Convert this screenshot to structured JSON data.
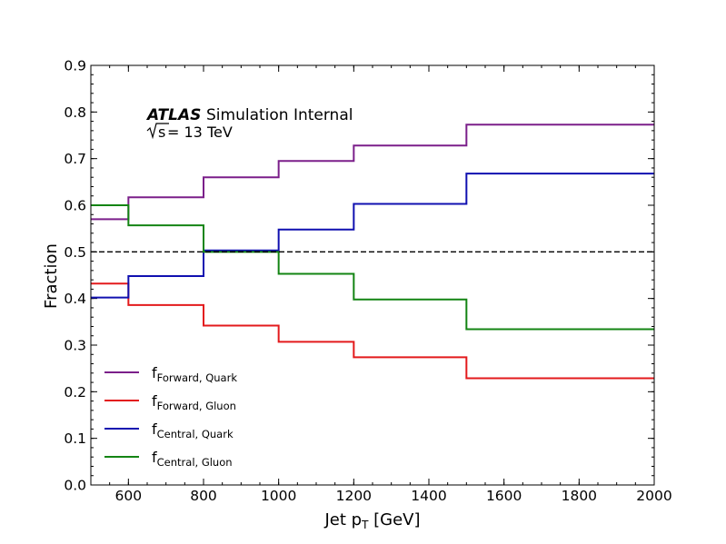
{
  "chart_data": {
    "type": "line",
    "drawstyle": "steps",
    "title": "",
    "xlabel_main": "Jet p",
    "xlabel_sub": "T",
    "xlabel_unit": " [GeV]",
    "ylabel": "Fraction",
    "xlim": [
      500,
      2000
    ],
    "ylim": [
      0,
      0.9
    ],
    "xticks": [
      600,
      800,
      1000,
      1200,
      1400,
      1600,
      1800,
      2000
    ],
    "yticks": [
      0.0,
      0.1,
      0.2,
      0.3,
      0.4,
      0.5,
      0.6,
      0.7,
      0.8,
      0.9
    ],
    "bin_edges": [
      500,
      600,
      800,
      1000,
      1200,
      1500,
      2000
    ],
    "reference_line": {
      "y": 0.5,
      "style": "dashed",
      "color": "#000000"
    },
    "annotation": {
      "experiment": "ATLAS",
      "status": "Simulation Internal",
      "energy_sqrt": "s",
      "energy_rest": " = 13 TeV"
    },
    "legend_placement": "lower-left",
    "series": [
      {
        "name": "Forward",
        "qualifier": "Quark",
        "color": "#7b1f8a",
        "values": [
          0.57,
          0.617,
          0.66,
          0.695,
          0.728,
          0.773
        ]
      },
      {
        "name": "Forward",
        "qualifier": "Gluon",
        "color": "#e31a1c",
        "values": [
          0.432,
          0.386,
          0.342,
          0.307,
          0.274,
          0.229
        ]
      },
      {
        "name": "Central",
        "qualifier": "Quark",
        "color": "#1010b0",
        "values": [
          0.402,
          0.448,
          0.503,
          0.548,
          0.603,
          0.668
        ]
      },
      {
        "name": "Central",
        "qualifier": "Gluon",
        "color": "#138413",
        "values": [
          0.6,
          0.557,
          0.5,
          0.453,
          0.398,
          0.334
        ]
      }
    ]
  }
}
